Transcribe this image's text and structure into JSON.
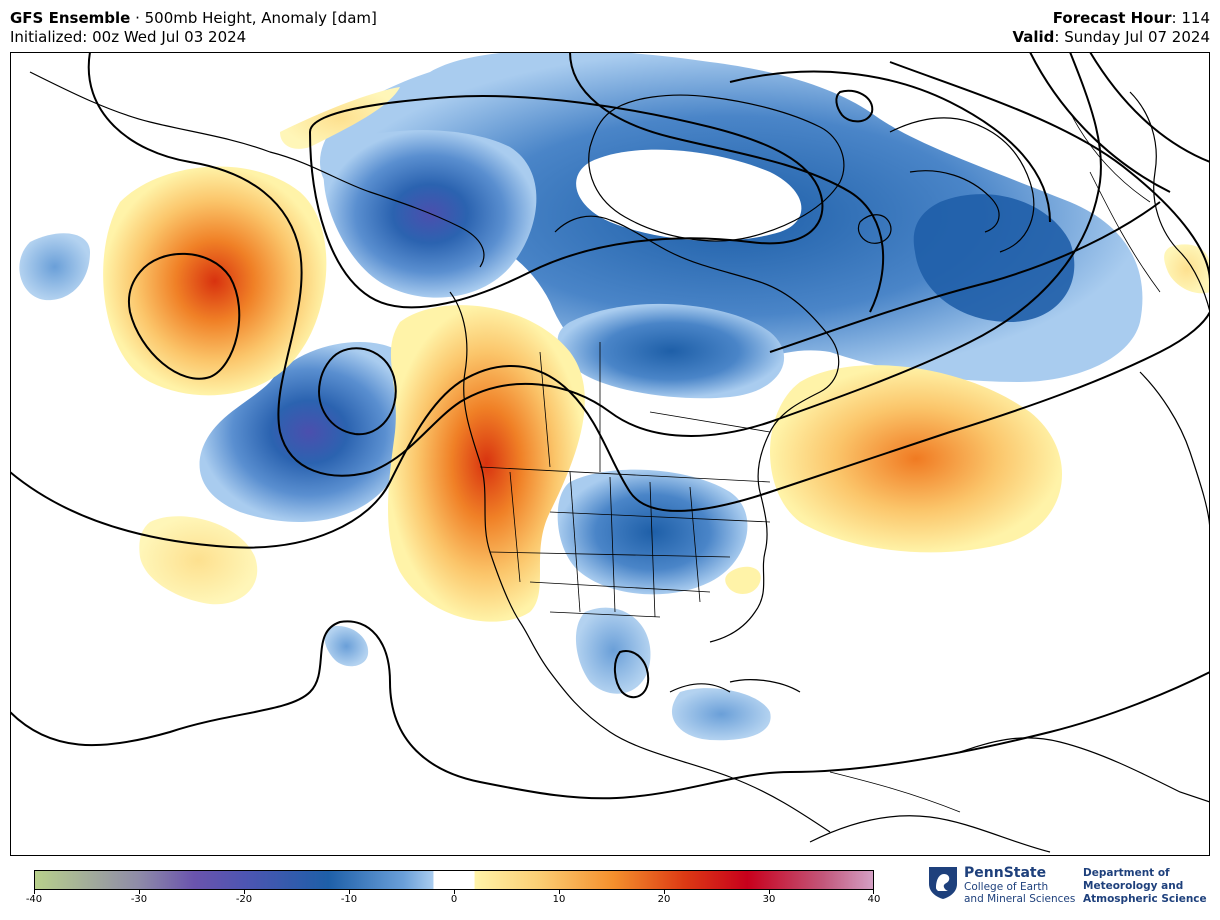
{
  "header": {
    "model": "GFS Ensemble",
    "separator": " · ",
    "product": "500mb Height, Anomaly [dam]",
    "initialized": "Initialized: 00z Wed Jul 03 2024",
    "forecast_label": "Forecast Hour",
    "forecast_value": ": 114",
    "valid_label": "Valid",
    "valid_value": ": Sunday Jul 07 2024"
  },
  "colorbar": {
    "ticks": [
      "-40",
      "-30",
      "-20",
      "-10",
      "0",
      "10",
      "20",
      "30",
      "40"
    ],
    "range": [
      -40,
      40
    ],
    "colors": {
      "neg40": "#b8d08c",
      "neg30": "#8e8aa8",
      "neg25": "#6a54ad",
      "neg20": "#4e55b2",
      "neg12": "#1e5fa8",
      "neg5": "#6a9fd8",
      "neg2": "#a9ccef",
      "zero": "#ffffff",
      "pos3": "#fff3a8",
      "pos8": "#fbcf75",
      "pos15": "#f4902d",
      "pos22": "#dc3a14",
      "pos28": "#c8001c",
      "pos35": "#c2567a",
      "pos40": "#d4a0c4"
    }
  },
  "logo": {
    "name": "PennState",
    "sub1": "College of Earth",
    "sub2": "and Mineral Sciences",
    "dept1": "Department of",
    "dept2": "Meteorology and",
    "dept3": "Atmospheric Science"
  },
  "map_colors": {
    "ocean": "#ffffff",
    "coast": "#000000",
    "contour": "#000000"
  }
}
